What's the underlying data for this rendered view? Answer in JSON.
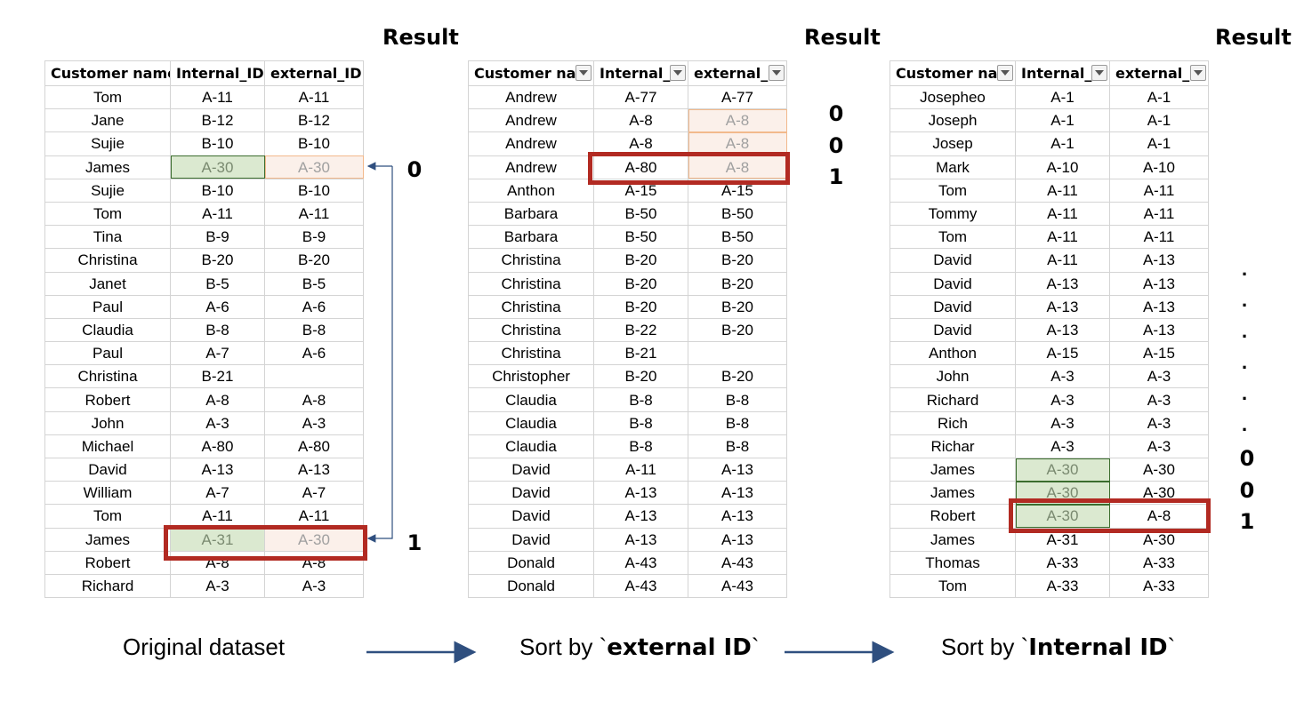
{
  "result_label": "Result",
  "columns": [
    "Customer name",
    "Internal_ID",
    "external_ID"
  ],
  "columns_truncated": [
    "Customer nar",
    "Internal_",
    "external_"
  ],
  "tables": [
    {
      "id": "original",
      "caption_plain": "Original dataset",
      "rows": [
        [
          "Tom",
          "A-11",
          "A-11"
        ],
        [
          "Jane",
          "B-12",
          "B-12"
        ],
        [
          "Sujie",
          "B-10",
          "B-10"
        ],
        [
          "James",
          "A-30",
          "A-30"
        ],
        [
          "Sujie",
          "B-10",
          "B-10"
        ],
        [
          "Tom",
          "A-11",
          "A-11"
        ],
        [
          "Tina",
          "B-9",
          "B-9"
        ],
        [
          "Christina",
          "B-20",
          "B-20"
        ],
        [
          "Janet",
          "B-5",
          "B-5"
        ],
        [
          "Paul",
          "A-6",
          "A-6"
        ],
        [
          "Claudia",
          "B-8",
          "B-8"
        ],
        [
          "Paul",
          "A-7",
          "A-6"
        ],
        [
          "Christina",
          "B-21",
          ""
        ],
        [
          "Robert",
          "A-8",
          "A-8"
        ],
        [
          "John",
          "A-3",
          "A-3"
        ],
        [
          "Michael",
          "A-80",
          "A-80"
        ],
        [
          "David",
          "A-13",
          "A-13"
        ],
        [
          "William",
          "A-7",
          "A-7"
        ],
        [
          "Tom",
          "A-11",
          "A-11"
        ],
        [
          "James",
          "A-31",
          "A-30"
        ],
        [
          "Robert",
          "A-8",
          "A-8"
        ],
        [
          "Richard",
          "A-3",
          "A-3"
        ]
      ],
      "flags": [
        "0",
        "1"
      ]
    },
    {
      "id": "sorted-external",
      "caption_prefix": "Sort by `",
      "caption_bold": "external ID",
      "caption_suffix": "`",
      "rows": [
        [
          "Andrew",
          "A-77",
          "A-77"
        ],
        [
          "Andrew",
          "A-8",
          "A-8"
        ],
        [
          "Andrew",
          "A-8",
          "A-8"
        ],
        [
          "Andrew",
          "A-80",
          "A-8"
        ],
        [
          "Anthon",
          "A-15",
          "A-15"
        ],
        [
          "Barbara",
          "B-50",
          "B-50"
        ],
        [
          "Barbara",
          "B-50",
          "B-50"
        ],
        [
          "Christina",
          "B-20",
          "B-20"
        ],
        [
          "Christina",
          "B-20",
          "B-20"
        ],
        [
          "Christina",
          "B-20",
          "B-20"
        ],
        [
          "Christina",
          "B-22",
          "B-20"
        ],
        [
          "Christina",
          "B-21",
          ""
        ],
        [
          "Christopher",
          "B-20",
          "B-20"
        ],
        [
          "Claudia",
          "B-8",
          "B-8"
        ],
        [
          "Claudia",
          "B-8",
          "B-8"
        ],
        [
          "Claudia",
          "B-8",
          "B-8"
        ],
        [
          "David",
          "A-11",
          "A-13"
        ],
        [
          "David",
          "A-13",
          "A-13"
        ],
        [
          "David",
          "A-13",
          "A-13"
        ],
        [
          "David",
          "A-13",
          "A-13"
        ],
        [
          "Donald",
          "A-43",
          "A-43"
        ],
        [
          "Donald",
          "A-43",
          "A-43"
        ]
      ],
      "flags": [
        "0",
        "0",
        "1"
      ]
    },
    {
      "id": "sorted-internal",
      "caption_prefix": "Sort by `",
      "caption_bold": "Internal ID",
      "caption_suffix": "`",
      "rows": [
        [
          "Josepheo",
          "A-1",
          "A-1"
        ],
        [
          "Joseph",
          "A-1",
          "A-1"
        ],
        [
          "Josep",
          "A-1",
          "A-1"
        ],
        [
          "Mark",
          "A-10",
          "A-10"
        ],
        [
          "Tom",
          "A-11",
          "A-11"
        ],
        [
          "Tommy",
          "A-11",
          "A-11"
        ],
        [
          "Tom",
          "A-11",
          "A-11"
        ],
        [
          "David",
          "A-11",
          "A-13"
        ],
        [
          "David",
          "A-13",
          "A-13"
        ],
        [
          "David",
          "A-13",
          "A-13"
        ],
        [
          "David",
          "A-13",
          "A-13"
        ],
        [
          "Anthon",
          "A-15",
          "A-15"
        ],
        [
          "John",
          "A-3",
          "A-3"
        ],
        [
          "Richard",
          "A-3",
          "A-3"
        ],
        [
          "Rich",
          "A-3",
          "A-3"
        ],
        [
          "Richar",
          "A-3",
          "A-3"
        ],
        [
          "James",
          "A-30",
          "A-30"
        ],
        [
          "James",
          "A-30",
          "A-30"
        ],
        [
          "Robert",
          "A-30",
          "A-8"
        ],
        [
          "James",
          "A-31",
          "A-30"
        ],
        [
          "Thomas",
          "A-33",
          "A-33"
        ],
        [
          "Tom",
          "A-33",
          "A-33"
        ]
      ],
      "flags": [
        "0",
        "0",
        "1"
      ]
    }
  ],
  "colors": {
    "red_box": "#b22a22",
    "green_highlight": "#dbe9d0",
    "orange_highlight": "#fbf0ea",
    "arrow": "#2f4f7f"
  }
}
